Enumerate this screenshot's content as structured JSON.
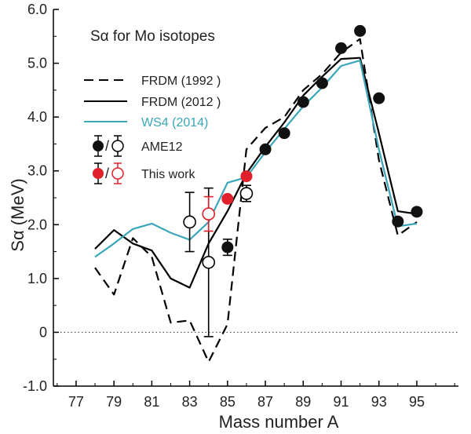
{
  "chart_data": {
    "type": "line",
    "title": "Sα for Mo isotopes",
    "xlabel": "Mass number A",
    "ylabel": "Sα (MeV)",
    "xlim": [
      75.8,
      97.2
    ],
    "ylim": [
      -1.0,
      6.0
    ],
    "xticks": [
      77,
      79,
      81,
      83,
      85,
      87,
      89,
      91,
      93,
      95
    ],
    "xtick_labels": [
      "77",
      "79",
      "81",
      "83",
      "85",
      "87",
      "89",
      "91",
      "93",
      "95"
    ],
    "yticks": [
      -1.0,
      0,
      1.0,
      2.0,
      3.0,
      4.0,
      5.0,
      6.0
    ],
    "ytick_labels": [
      "-1.0",
      "0",
      "1.0",
      "2.0",
      "3.0",
      "4.0",
      "5.0",
      "6.0"
    ],
    "zero_line": true,
    "grid": false,
    "legend_position": "upper-left",
    "lines": [
      {
        "name": "FRDM (1992 )",
        "color": "#000000",
        "style": "dashed",
        "x": [
          78,
          79,
          80,
          81,
          82,
          83,
          84,
          85,
          86,
          87,
          88,
          89,
          90,
          91,
          92,
          93,
          94,
          95
        ],
        "y": [
          1.2,
          0.7,
          1.75,
          1.4,
          0.18,
          0.22,
          -0.55,
          0.15,
          3.4,
          3.8,
          4.0,
          4.5,
          4.8,
          5.2,
          5.45,
          3.2,
          1.8,
          2.05
        ]
      },
      {
        "name": "FRDM (2012 )",
        "color": "#000000",
        "style": "solid",
        "x": [
          78,
          79,
          80,
          81,
          82,
          83,
          84,
          85,
          86,
          87,
          88,
          89,
          90,
          91,
          92,
          93,
          94,
          95
        ],
        "y": [
          1.55,
          1.9,
          1.65,
          1.52,
          1.0,
          0.83,
          1.65,
          2.25,
          2.95,
          3.45,
          3.9,
          4.4,
          4.75,
          5.08,
          5.1,
          3.7,
          2.25,
          2.2
        ]
      },
      {
        "name": "WS4 (2014)",
        "color": "#3aa6b9",
        "style": "solid",
        "x": [
          78,
          79,
          80,
          81,
          82,
          83,
          84,
          85,
          86,
          87,
          88,
          89,
          90,
          91,
          92,
          93,
          94,
          95
        ],
        "y": [
          1.4,
          1.65,
          1.92,
          2.02,
          1.85,
          1.72,
          2.05,
          2.78,
          2.88,
          3.35,
          3.78,
          4.2,
          4.55,
          4.95,
          5.05,
          3.4,
          1.97,
          2.02
        ]
      }
    ],
    "points": [
      {
        "name": "AME12",
        "color": "#000000",
        "values": [
          {
            "x": 83,
            "y": 2.05,
            "err": 0.55,
            "filled": false
          },
          {
            "x": 84,
            "y": 1.3,
            "err": 1.38,
            "filled": false
          },
          {
            "x": 85,
            "y": 1.58,
            "err": 0.15,
            "filled": true
          },
          {
            "x": 86,
            "y": 2.58,
            "err": 0.15,
            "filled": false
          },
          {
            "x": 87,
            "y": 3.4,
            "err": 0,
            "filled": true
          },
          {
            "x": 88,
            "y": 3.7,
            "err": 0,
            "filled": true
          },
          {
            "x": 89,
            "y": 4.28,
            "err": 0,
            "filled": true
          },
          {
            "x": 90,
            "y": 4.63,
            "err": 0,
            "filled": true
          },
          {
            "x": 91,
            "y": 5.28,
            "err": 0,
            "filled": true
          },
          {
            "x": 92,
            "y": 5.6,
            "err": 0,
            "filled": true
          },
          {
            "x": 93,
            "y": 4.35,
            "err": 0,
            "filled": true
          },
          {
            "x": 94,
            "y": 2.06,
            "err": 0,
            "filled": true
          },
          {
            "x": 95,
            "y": 2.24,
            "err": 0,
            "filled": true
          }
        ]
      },
      {
        "name": "This work",
        "color": "#e0202a",
        "values": [
          {
            "x": 84,
            "y": 2.2,
            "err": 0.32,
            "filled": false
          },
          {
            "x": 85,
            "y": 2.48,
            "err": 0,
            "filled": true
          },
          {
            "x": 86,
            "y": 2.9,
            "err": 0,
            "filled": true
          }
        ]
      }
    ]
  }
}
